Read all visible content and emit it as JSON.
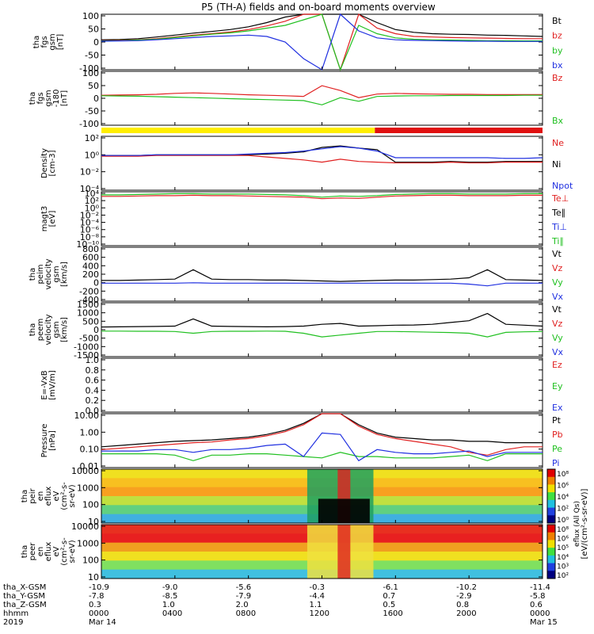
{
  "title": "P5 (TH-A) fields and on-board moments overview",
  "colors": {
    "black": "#000000",
    "red": "#e02020",
    "green": "#20c020",
    "blue": "#2030e0",
    "yellow": "#ffee00",
    "bar_red": "#e01010"
  },
  "panels": [
    {
      "id": "fgs",
      "ylabel": [
        "tha",
        "fgs",
        "gsm",
        "[nT]"
      ],
      "ticks": [
        "100",
        "50",
        "0",
        "-50",
        "-100"
      ],
      "ylim": [
        -100,
        100
      ],
      "legend": [
        {
          "label": "Bt",
          "color": "#000000"
        },
        {
          "label": "bz",
          "color": "#e02020"
        },
        {
          "label": "by",
          "color": "#20c020"
        },
        {
          "label": "bx",
          "color": "#2030e0"
        }
      ]
    },
    {
      "id": "fgs-dsl",
      "ylabel": [
        "tha",
        "fgs",
        "gsm",
        "-180",
        "[nT]"
      ],
      "ticks": [
        "100",
        "50",
        "0",
        "-50",
        "-100"
      ],
      "ylim": [
        -125,
        100
      ],
      "legend": [
        {
          "label": "Bz",
          "color": "#e02020"
        },
        {
          "label": "Bx",
          "color": "#20c020"
        }
      ]
    },
    {
      "id": "density",
      "ylabel": [
        "Density",
        "[cm-3]"
      ],
      "ticks": [
        "10²",
        "10⁰",
        "10⁻²",
        "10⁻⁴"
      ],
      "ylim": [
        -5,
        2.3
      ],
      "legend": [
        {
          "label": "Ne",
          "color": "#e02020"
        },
        {
          "label": "Ni",
          "color": "#000000"
        },
        {
          "label": "Npot",
          "color": "#2030e0"
        }
      ]
    },
    {
      "id": "temperature",
      "ylabel": [
        "magt3",
        "[eV]"
      ],
      "ticks": [
        "10⁴",
        "10²",
        "10⁰",
        "10⁻²",
        "10⁻⁴",
        "10⁻⁶",
        "10⁻⁸",
        "10⁻¹⁰"
      ],
      "ylim": [
        -10,
        4
      ],
      "legend": [
        {
          "label": "Te⊥",
          "color": "#e02020"
        },
        {
          "label": "Te∥",
          "color": "#000000"
        },
        {
          "label": "Ti⊥",
          "color": "#2030e0"
        },
        {
          "label": "Ti∥",
          "color": "#20c020"
        }
      ]
    },
    {
      "id": "peim-velocity",
      "ylabel": [
        "tha",
        "peim",
        "velocity",
        "gsm",
        "[km/s]"
      ],
      "ticks": [
        "800",
        "600",
        "400",
        "200",
        "0",
        "-200",
        "-400"
      ],
      "ylim": [
        -400,
        800
      ],
      "legend": [
        {
          "label": "Vt",
          "color": "#000000"
        },
        {
          "label": "Vz",
          "color": "#e02020"
        },
        {
          "label": "Vy",
          "color": "#20c020"
        },
        {
          "label": "Vx",
          "color": "#2030e0"
        }
      ]
    },
    {
      "id": "peem-velocity",
      "ylabel": [
        "tha",
        "peem",
        "velocity",
        "gsm",
        "[km/s]"
      ],
      "ticks": [
        "1500",
        "1000",
        "500",
        "0",
        "-500",
        "-1000",
        "-1500"
      ],
      "ylim": [
        -1500,
        1500
      ],
      "legend": [
        {
          "label": "Vt",
          "color": "#000000"
        },
        {
          "label": "Vz",
          "color": "#e02020"
        },
        {
          "label": "Vy",
          "color": "#20c020"
        },
        {
          "label": "Vx",
          "color": "#2030e0"
        }
      ]
    },
    {
      "id": "efield",
      "ylabel": [
        "E=-VxB",
        "[mV/m]"
      ],
      "ticks": [
        "1.0",
        "0.8",
        "0.6",
        "0.4",
        "0.2",
        "0.0"
      ],
      "ylim": [
        0,
        1
      ],
      "legend": [
        {
          "label": "Ez",
          "color": "#e02020"
        },
        {
          "label": "Ey",
          "color": "#20c020"
        },
        {
          "label": "Ex",
          "color": "#2030e0"
        }
      ]
    },
    {
      "id": "pressure",
      "ylabel": [
        "Pressure",
        "[nPa]"
      ],
      "ticks": [
        "10.00",
        "1.00",
        "0.10",
        "0.01"
      ],
      "ylim": [
        -2.3,
        1.6
      ],
      "legend": [
        {
          "label": "Pt",
          "color": "#000000"
        },
        {
          "label": "Pb",
          "color": "#e02020"
        },
        {
          "label": "Pe",
          "color": "#20c020"
        },
        {
          "label": "Pi",
          "color": "#2030e0"
        }
      ]
    },
    {
      "id": "peir",
      "ylabel": [
        "tha",
        "peir",
        "en",
        "eflux",
        "eV",
        "(cm²-s-",
        "sr-eV)"
      ],
      "ticks": [
        "10000",
        "1000",
        "100",
        "10"
      ]
    },
    {
      "id": "peer",
      "ylabel": [
        "tha",
        "peer",
        "en",
        "eflux",
        "eV",
        "(cm²-s-",
        "sr-eV)"
      ],
      "ticks": [
        "10000",
        "1000",
        "100",
        "10"
      ]
    }
  ],
  "colorbar": {
    "label": "[eV/(cm²-s-sr-eV)]",
    "label2": "eflux (All Qs)",
    "ticks_top": [
      "10⁸",
      "10⁶",
      "10⁴",
      "10²",
      "10⁰"
    ],
    "ticks_bottom": [
      "10⁸",
      "10⁶",
      "10⁵",
      "10⁴",
      "10³",
      "10²"
    ]
  },
  "axis": {
    "row_labels": [
      "tha_X-GSM",
      "tha_Y-GSM",
      "tha_Z-GSM",
      "hhmm",
      "2019"
    ],
    "columns": [
      [
        "-10.9",
        "-7.8",
        "0.3",
        "0000",
        "Mar 14"
      ],
      [
        "-9.0",
        "-8.5",
        "1.0",
        "0400",
        ""
      ],
      [
        "-5.6",
        "-7.9",
        "2.0",
        "0800",
        ""
      ],
      [
        "-0.3",
        "-4.4",
        "1.1",
        "1200",
        ""
      ],
      [
        "-6.1",
        "0.7",
        "0.5",
        "1600",
        ""
      ],
      [
        "-10.2",
        "-2.9",
        "0.8",
        "2000",
        ""
      ],
      [
        "-11.4",
        "-5.8",
        "0.6",
        "0000",
        "Mar 15"
      ]
    ]
  },
  "chart_data": {
    "type": "line",
    "x_hours": [
      0,
      1,
      2,
      3,
      4,
      5,
      6,
      7,
      8,
      9,
      10,
      11,
      12,
      13,
      14,
      15,
      16,
      17,
      18,
      19,
      20,
      21,
      22,
      23,
      24
    ],
    "series": [
      {
        "panel": "fgs",
        "name": "Bt",
        "values": [
          8,
          9,
          12,
          18,
          25,
          32,
          38,
          45,
          55,
          70,
          90,
          150,
          400,
          300,
          120,
          70,
          45,
          35,
          30,
          28,
          27,
          25,
          24,
          22,
          20
        ]
      },
      {
        "panel": "fgs",
        "name": "bz",
        "values": [
          5,
          6,
          8,
          12,
          18,
          25,
          30,
          36,
          45,
          58,
          75,
          100,
          200,
          -300,
          100,
          50,
          30,
          20,
          18,
          16,
          15,
          14,
          13,
          12,
          12
        ]
      },
      {
        "panel": "fgs",
        "name": "by",
        "values": [
          4,
          5,
          7,
          10,
          16,
          22,
          28,
          33,
          40,
          50,
          60,
          80,
          200,
          -200,
          60,
          30,
          15,
          10,
          8,
          7,
          6,
          5,
          5,
          4,
          4
        ]
      },
      {
        "panel": "fgs",
        "name": "bx",
        "values": [
          3,
          4,
          5,
          8,
          12,
          16,
          20,
          22,
          25,
          20,
          0,
          -60,
          -300,
          300,
          40,
          15,
          8,
          6,
          5,
          4,
          3,
          3,
          2,
          2,
          2
        ]
      },
      {
        "panel": "fgs-dsl",
        "name": "Bz",
        "values": [
          0,
          1,
          2,
          4,
          8,
          10,
          8,
          5,
          2,
          0,
          -2,
          -5,
          40,
          20,
          -10,
          5,
          8,
          6,
          5,
          4,
          4,
          3,
          3,
          3,
          3
        ]
      },
      {
        "panel": "fgs-dsl",
        "name": "Bx",
        "values": [
          -2,
          -3,
          -4,
          -6,
          -8,
          -10,
          -12,
          -14,
          -16,
          -18,
          -20,
          -22,
          -40,
          -10,
          -25,
          -5,
          -3,
          -2,
          -2,
          -1,
          -1,
          -1,
          -1,
          0,
          0
        ]
      },
      {
        "panel": "density",
        "name": "Ni",
        "values": [
          -0.3,
          -0.3,
          -0.3,
          -0.2,
          -0.2,
          -0.2,
          -0.2,
          -0.2,
          -0.2,
          -0.1,
          0,
          0.2,
          0.8,
          1.0,
          0.7,
          0.5,
          -1.2,
          -1.2,
          -1.2,
          -1.1,
          -1.2,
          -1.2,
          -1.1,
          -1.1,
          -1.1
        ]
      },
      {
        "panel": "density",
        "name": "Ne",
        "values": [
          -0.4,
          -0.4,
          -0.4,
          -0.3,
          -0.3,
          -0.3,
          -0.3,
          -0.3,
          -0.3,
          -0.5,
          -0.7,
          -0.9,
          -1.2,
          -0.8,
          -1.1,
          -1.2,
          -1.3,
          -1.3,
          -1.3,
          -1.2,
          -1.3,
          -1.3,
          -1.2,
          -1.2,
          -1.2
        ]
      },
      {
        "panel": "density",
        "name": "Npot",
        "values": [
          -0.3,
          -0.3,
          -0.3,
          -0.2,
          -0.2,
          -0.2,
          -0.2,
          -0.2,
          -0.1,
          0,
          0.1,
          0.3,
          0.6,
          0.9,
          0.7,
          0.3,
          -0.6,
          -0.6,
          -0.6,
          -0.6,
          -0.6,
          -0.6,
          -0.7,
          -0.7,
          -0.6
        ]
      },
      {
        "panel": "temperature",
        "name": "Te⊥",
        "values": [
          2.8,
          2.8,
          2.9,
          3.0,
          3.0,
          3.1,
          3.0,
          3.0,
          2.9,
          2.8,
          2.7,
          2.6,
          2.2,
          2.4,
          2.3,
          2.6,
          2.9,
          3.0,
          3.1,
          3.1,
          3.0,
          3.0,
          3.0,
          3.1,
          3.1
        ]
      },
      {
        "panel": "temperature",
        "name": "Ti∥",
        "values": [
          3.2,
          3.2,
          3.3,
          3.4,
          3.5,
          3.5,
          3.4,
          3.4,
          3.4,
          3.3,
          3.2,
          3.0,
          2.6,
          2.9,
          2.8,
          3.0,
          3.3,
          3.4,
          3.5,
          3.5,
          3.4,
          3.4,
          3.4,
          3.5,
          3.5
        ]
      },
      {
        "panel": "peim-velocity",
        "name": "Vt",
        "values": [
          60,
          60,
          70,
          80,
          90,
          300,
          90,
          80,
          80,
          70,
          70,
          60,
          50,
          40,
          50,
          60,
          70,
          70,
          80,
          90,
          120,
          300,
          80,
          70,
          60
        ]
      },
      {
        "panel": "peim-velocity",
        "name": "Vx",
        "values": [
          0,
          0,
          0,
          0,
          0,
          10,
          0,
          0,
          0,
          0,
          0,
          0,
          0,
          0,
          0,
          0,
          0,
          0,
          0,
          0,
          -20,
          -60,
          0,
          0,
          0
        ]
      },
      {
        "panel": "peem-velocity",
        "name": "Vt",
        "values": [
          150,
          160,
          170,
          180,
          200,
          600,
          200,
          180,
          170,
          160,
          170,
          200,
          300,
          350,
          200,
          220,
          250,
          260,
          300,
          400,
          500,
          900,
          300,
          250,
          200
        ]
      },
      {
        "panel": "peem-velocity",
        "name": "Vy",
        "values": [
          -80,
          -80,
          -90,
          -90,
          -100,
          -200,
          -100,
          -90,
          -90,
          -80,
          -90,
          -200,
          -400,
          -300,
          -200,
          -100,
          -100,
          -120,
          -140,
          -160,
          -200,
          -400,
          -150,
          -120,
          -100
        ]
      },
      {
        "panel": "pressure",
        "name": "Pt",
        "values": [
          -0.8,
          -0.7,
          -0.6,
          -0.5,
          -0.4,
          -0.35,
          -0.3,
          -0.2,
          -0.1,
          0.1,
          0.4,
          0.9,
          1.6,
          1.6,
          0.8,
          0.2,
          -0.1,
          -0.2,
          -0.3,
          -0.3,
          -0.4,
          -0.4,
          -0.5,
          -0.5,
          -0.5
        ]
      },
      {
        "panel": "pressure",
        "name": "Pb",
        "values": [
          -1.0,
          -0.9,
          -0.8,
          -0.7,
          -0.6,
          -0.5,
          -0.45,
          -0.3,
          -0.2,
          0,
          0.3,
          0.8,
          1.6,
          1.6,
          0.7,
          0.1,
          -0.2,
          -0.4,
          -0.6,
          -0.8,
          -1.2,
          -1.4,
          -1.0,
          -0.8,
          -0.8
        ]
      },
      {
        "panel": "pressure",
        "name": "Pe",
        "values": [
          -1.3,
          -1.3,
          -1.3,
          -1.3,
          -1.4,
          -1.8,
          -1.4,
          -1.4,
          -1.3,
          -1.3,
          -1.4,
          -1.5,
          -1.6,
          -1.2,
          -1.5,
          -1.5,
          -1.6,
          -1.6,
          -1.6,
          -1.5,
          -1.4,
          -1.8,
          -1.3,
          -1.3,
          -1.3
        ]
      },
      {
        "panel": "pressure",
        "name": "Pi",
        "values": [
          -1.1,
          -1.1,
          -1.1,
          -1.0,
          -1.0,
          -1.2,
          -1.0,
          -1.0,
          -0.9,
          -0.7,
          -0.6,
          -1.5,
          0.2,
          0.1,
          -1.8,
          -1.0,
          -1.2,
          -1.3,
          -1.3,
          -1.2,
          -1.1,
          -1.5,
          -1.2,
          -1.2,
          -1.2
        ]
      }
    ]
  }
}
